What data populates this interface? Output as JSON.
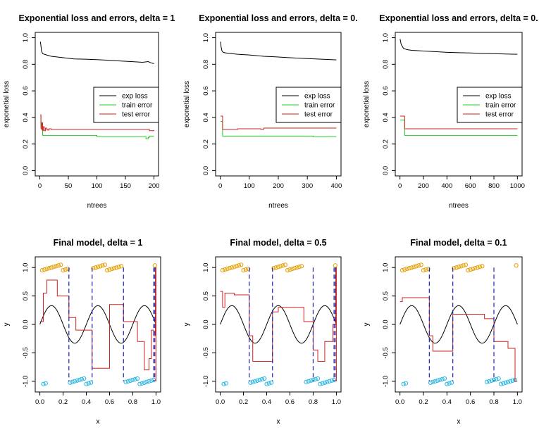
{
  "chart_data": [
    {
      "type": "line",
      "title": "Exponential loss and errors, delta = 1",
      "xlabel": "ntrees",
      "ylabel": "exponetial loss",
      "xlim": [
        0,
        200
      ],
      "ylim": [
        0,
        1
      ],
      "xticks": [
        0,
        50,
        100,
        150,
        200
      ],
      "yticks": [
        0.0,
        0.2,
        0.4,
        0.6,
        0.8,
        1.0
      ],
      "legend_position": "right",
      "series": [
        {
          "name": "exp loss",
          "color": "#000000",
          "style": "line",
          "x": [
            1,
            2,
            3,
            5,
            8,
            12,
            20,
            40,
            60,
            80,
            100,
            120,
            140,
            160,
            180,
            190,
            195,
            200
          ],
          "y": [
            0.97,
            0.94,
            0.9,
            0.88,
            0.875,
            0.87,
            0.86,
            0.85,
            0.84,
            0.838,
            0.835,
            0.83,
            0.825,
            0.82,
            0.815,
            0.82,
            0.81,
            0.805
          ]
        },
        {
          "name": "train error",
          "color": "#22cc22",
          "style": "step",
          "x": [
            1,
            2,
            3,
            5,
            60,
            100,
            180,
            186,
            190,
            192,
            200
          ],
          "y": [
            0.41,
            0.36,
            0.33,
            0.265,
            0.265,
            0.255,
            0.255,
            0.24,
            0.25,
            0.26,
            0.26
          ]
        },
        {
          "name": "test error",
          "color": "#cc2222",
          "style": "step",
          "x": [
            1,
            2,
            3,
            4,
            5,
            6,
            8,
            10,
            12,
            14,
            16,
            20,
            40,
            80,
            120,
            160,
            190,
            192,
            200
          ],
          "y": [
            0.42,
            0.32,
            0.31,
            0.36,
            0.3,
            0.33,
            0.3,
            0.32,
            0.31,
            0.305,
            0.315,
            0.31,
            0.31,
            0.31,
            0.31,
            0.31,
            0.31,
            0.3,
            0.305
          ]
        }
      ]
    },
    {
      "type": "line",
      "title": "Exponential loss and errors, delta = 0.",
      "xlabel": "ntrees",
      "ylabel": "exponetial loss",
      "xlim": [
        0,
        400
      ],
      "ylim": [
        0,
        1
      ],
      "xticks": [
        0,
        100,
        200,
        300,
        400
      ],
      "yticks": [
        0.0,
        0.2,
        0.4,
        0.6,
        0.8,
        1.0
      ],
      "legend_position": "right",
      "series": [
        {
          "name": "exp loss",
          "color": "#000000",
          "style": "line",
          "x": [
            1,
            3,
            6,
            10,
            20,
            40,
            60,
            100,
            150,
            200,
            250,
            300,
            350,
            400
          ],
          "y": [
            0.97,
            0.93,
            0.9,
            0.89,
            0.885,
            0.88,
            0.875,
            0.87,
            0.86,
            0.855,
            0.848,
            0.843,
            0.838,
            0.833
          ]
        },
        {
          "name": "train error",
          "color": "#22cc22",
          "style": "step",
          "x": [
            1,
            8,
            320,
            400
          ],
          "y": [
            0.37,
            0.26,
            0.255,
            0.255
          ]
        },
        {
          "name": "test error",
          "color": "#cc2222",
          "style": "step",
          "x": [
            1,
            8,
            60,
            140,
            150,
            400
          ],
          "y": [
            0.41,
            0.31,
            0.315,
            0.31,
            0.32,
            0.32
          ]
        }
      ]
    },
    {
      "type": "line",
      "title": "Exponential loss and errors, delta = 0.",
      "xlabel": "ntrees",
      "ylabel": "exponetial loss",
      "xlim": [
        0,
        1000
      ],
      "ylim": [
        0,
        1
      ],
      "xticks": [
        0,
        200,
        400,
        600,
        800,
        1000
      ],
      "yticks": [
        0.0,
        0.2,
        0.4,
        0.6,
        0.8,
        1.0
      ],
      "legend_position": "right",
      "series": [
        {
          "name": "exp loss",
          "color": "#000000",
          "style": "line",
          "x": [
            1,
            10,
            30,
            60,
            100,
            200,
            300,
            400,
            500,
            600,
            700,
            800,
            900,
            1000
          ],
          "y": [
            0.99,
            0.95,
            0.92,
            0.91,
            0.905,
            0.9,
            0.895,
            0.89,
            0.887,
            0.885,
            0.882,
            0.88,
            0.877,
            0.875
          ]
        },
        {
          "name": "train error",
          "color": "#22cc22",
          "style": "step",
          "x": [
            1,
            40,
            1000
          ],
          "y": [
            0.38,
            0.265,
            0.265
          ]
        },
        {
          "name": "test error",
          "color": "#cc2222",
          "style": "step",
          "x": [
            1,
            40,
            1000
          ],
          "y": [
            0.41,
            0.315,
            0.315
          ]
        }
      ]
    },
    {
      "type": "scatter",
      "title": "Final model, delta = 1",
      "xlabel": "x",
      "ylabel": "y",
      "xlim": [
        0,
        1
      ],
      "ylim": [
        -1.1,
        1.1
      ],
      "xticks": [
        0.0,
        0.2,
        0.4,
        0.6,
        0.8,
        1.0
      ],
      "yticks": [
        -1.0,
        -0.5,
        0.0,
        0.5,
        1.0
      ],
      "series": [
        {
          "name": "",
          "color": "#e69f00",
          "style": "points",
          "value": 1,
          "x": [
            0.02,
            0.04,
            0.06,
            0.08,
            0.1,
            0.12,
            0.14,
            0.16,
            0.18,
            0.2,
            0.22,
            0.24,
            0.46,
            0.48,
            0.5,
            0.52,
            0.54,
            0.56,
            0.58,
            0.6,
            0.62,
            0.64,
            0.66,
            0.68,
            0.7,
            0.99
          ]
        },
        {
          "name": "",
          "color": "#29b6e0",
          "style": "points",
          "value": -1,
          "x": [
            0.03,
            0.05,
            0.26,
            0.28,
            0.3,
            0.32,
            0.34,
            0.36,
            0.38,
            0.4,
            0.42,
            0.44,
            0.74,
            0.76,
            0.78,
            0.8,
            0.82,
            0.84,
            0.86,
            0.88,
            0.9,
            0.92,
            0.94,
            0.96,
            0.98
          ]
        },
        {
          "name": "",
          "color": "#000000",
          "style": "sine",
          "amplitude": 0.33,
          "frequency": 2.5,
          "x_from": 0.0,
          "x_to": 1.0
        },
        {
          "name": "",
          "color": "#cc2222",
          "style": "step",
          "x": [
            0.0,
            0.03,
            0.06,
            0.15,
            0.25,
            0.31,
            0.45,
            0.6,
            0.72,
            0.84,
            0.9,
            0.94,
            0.96,
            0.98,
            0.995,
            1.0
          ],
          "y": [
            0.05,
            0.55,
            0.78,
            0.5,
            0.12,
            -0.1,
            -0.77,
            0.35,
            0.05,
            -0.3,
            -0.8,
            -0.6,
            -0.1,
            -0.2,
            1.0,
            -1.0
          ]
        },
        {
          "name": "",
          "color": "#2222aa",
          "style": "splits",
          "x": [
            0.25,
            0.45,
            0.72,
            0.98,
            0.99
          ]
        }
      ]
    },
    {
      "type": "scatter",
      "title": "Final model, delta = 0.5",
      "xlabel": "x",
      "ylabel": "y",
      "xlim": [
        0,
        1
      ],
      "ylim": [
        -1.1,
        1.1
      ],
      "xticks": [
        0.0,
        0.2,
        0.4,
        0.6,
        0.8,
        1.0
      ],
      "yticks": [
        -1.0,
        -0.5,
        0.0,
        0.5,
        1.0
      ],
      "series": [
        {
          "name": "",
          "color": "#e69f00",
          "style": "points",
          "value": 1,
          "x": [
            0.02,
            0.04,
            0.06,
            0.08,
            0.1,
            0.12,
            0.14,
            0.16,
            0.18,
            0.2,
            0.22,
            0.24,
            0.46,
            0.48,
            0.5,
            0.52,
            0.54,
            0.56,
            0.58,
            0.6,
            0.62,
            0.64,
            0.66,
            0.68,
            0.7,
            0.99
          ]
        },
        {
          "name": "",
          "color": "#29b6e0",
          "style": "points",
          "value": -1,
          "x": [
            0.03,
            0.05,
            0.26,
            0.28,
            0.3,
            0.32,
            0.34,
            0.36,
            0.38,
            0.4,
            0.42,
            0.44,
            0.74,
            0.76,
            0.78,
            0.8,
            0.82,
            0.84,
            0.86,
            0.88,
            0.9,
            0.92,
            0.94,
            0.96,
            0.98
          ]
        },
        {
          "name": "",
          "color": "#000000",
          "style": "sine",
          "amplitude": 0.33,
          "frequency": 2.5,
          "x_from": 0.0,
          "x_to": 1.0
        },
        {
          "name": "",
          "color": "#cc2222",
          "style": "step",
          "x": [
            0.0,
            0.02,
            0.04,
            0.12,
            0.25,
            0.28,
            0.45,
            0.5,
            0.6,
            0.72,
            0.8,
            0.84,
            0.9,
            0.97,
            0.995,
            1.0
          ],
          "y": [
            0.58,
            0.3,
            0.55,
            0.52,
            -0.2,
            -0.65,
            0.22,
            0.3,
            0.3,
            0.05,
            -0.45,
            -0.65,
            -0.3,
            0.0,
            1.0,
            -1.0
          ]
        },
        {
          "name": "",
          "color": "#2222aa",
          "style": "splits",
          "x": [
            0.25,
            0.45,
            0.8,
            0.98,
            0.99
          ]
        }
      ]
    },
    {
      "type": "scatter",
      "title": "Final model, delta = 0.1",
      "xlabel": "x",
      "ylabel": "y",
      "xlim": [
        0,
        1
      ],
      "ylim": [
        -1.1,
        1.1
      ],
      "xticks": [
        0.0,
        0.2,
        0.4,
        0.6,
        0.8,
        1.0
      ],
      "yticks": [
        -1.0,
        -0.5,
        0.0,
        0.5,
        1.0
      ],
      "series": [
        {
          "name": "",
          "color": "#e69f00",
          "style": "points",
          "value": 1,
          "x": [
            0.02,
            0.04,
            0.06,
            0.08,
            0.1,
            0.12,
            0.14,
            0.16,
            0.18,
            0.2,
            0.22,
            0.24,
            0.46,
            0.48,
            0.5,
            0.52,
            0.54,
            0.56,
            0.58,
            0.6,
            0.62,
            0.64,
            0.66,
            0.68,
            0.7,
            0.99
          ]
        },
        {
          "name": "",
          "color": "#29b6e0",
          "style": "points",
          "value": -1,
          "x": [
            0.03,
            0.05,
            0.26,
            0.28,
            0.3,
            0.32,
            0.34,
            0.36,
            0.38,
            0.4,
            0.42,
            0.44,
            0.74,
            0.76,
            0.78,
            0.8,
            0.82,
            0.84,
            0.86,
            0.88,
            0.9,
            0.92,
            0.94,
            0.96,
            0.98
          ]
        },
        {
          "name": "",
          "color": "#000000",
          "style": "sine",
          "amplitude": 0.33,
          "frequency": 2.5,
          "x_from": 0.0,
          "x_to": 1.0
        },
        {
          "name": "",
          "color": "#cc2222",
          "style": "step",
          "x": [
            0.0,
            0.02,
            0.25,
            0.28,
            0.45,
            0.72,
            0.8,
            0.92,
            0.98,
            1.0
          ],
          "y": [
            0.4,
            0.47,
            -0.2,
            -0.47,
            0.18,
            0.1,
            -0.3,
            -0.42,
            -1.0,
            -1.0
          ]
        },
        {
          "name": "",
          "color": "#2222aa",
          "style": "splits",
          "x": [
            0.25,
            0.45,
            0.8
          ]
        }
      ]
    }
  ]
}
